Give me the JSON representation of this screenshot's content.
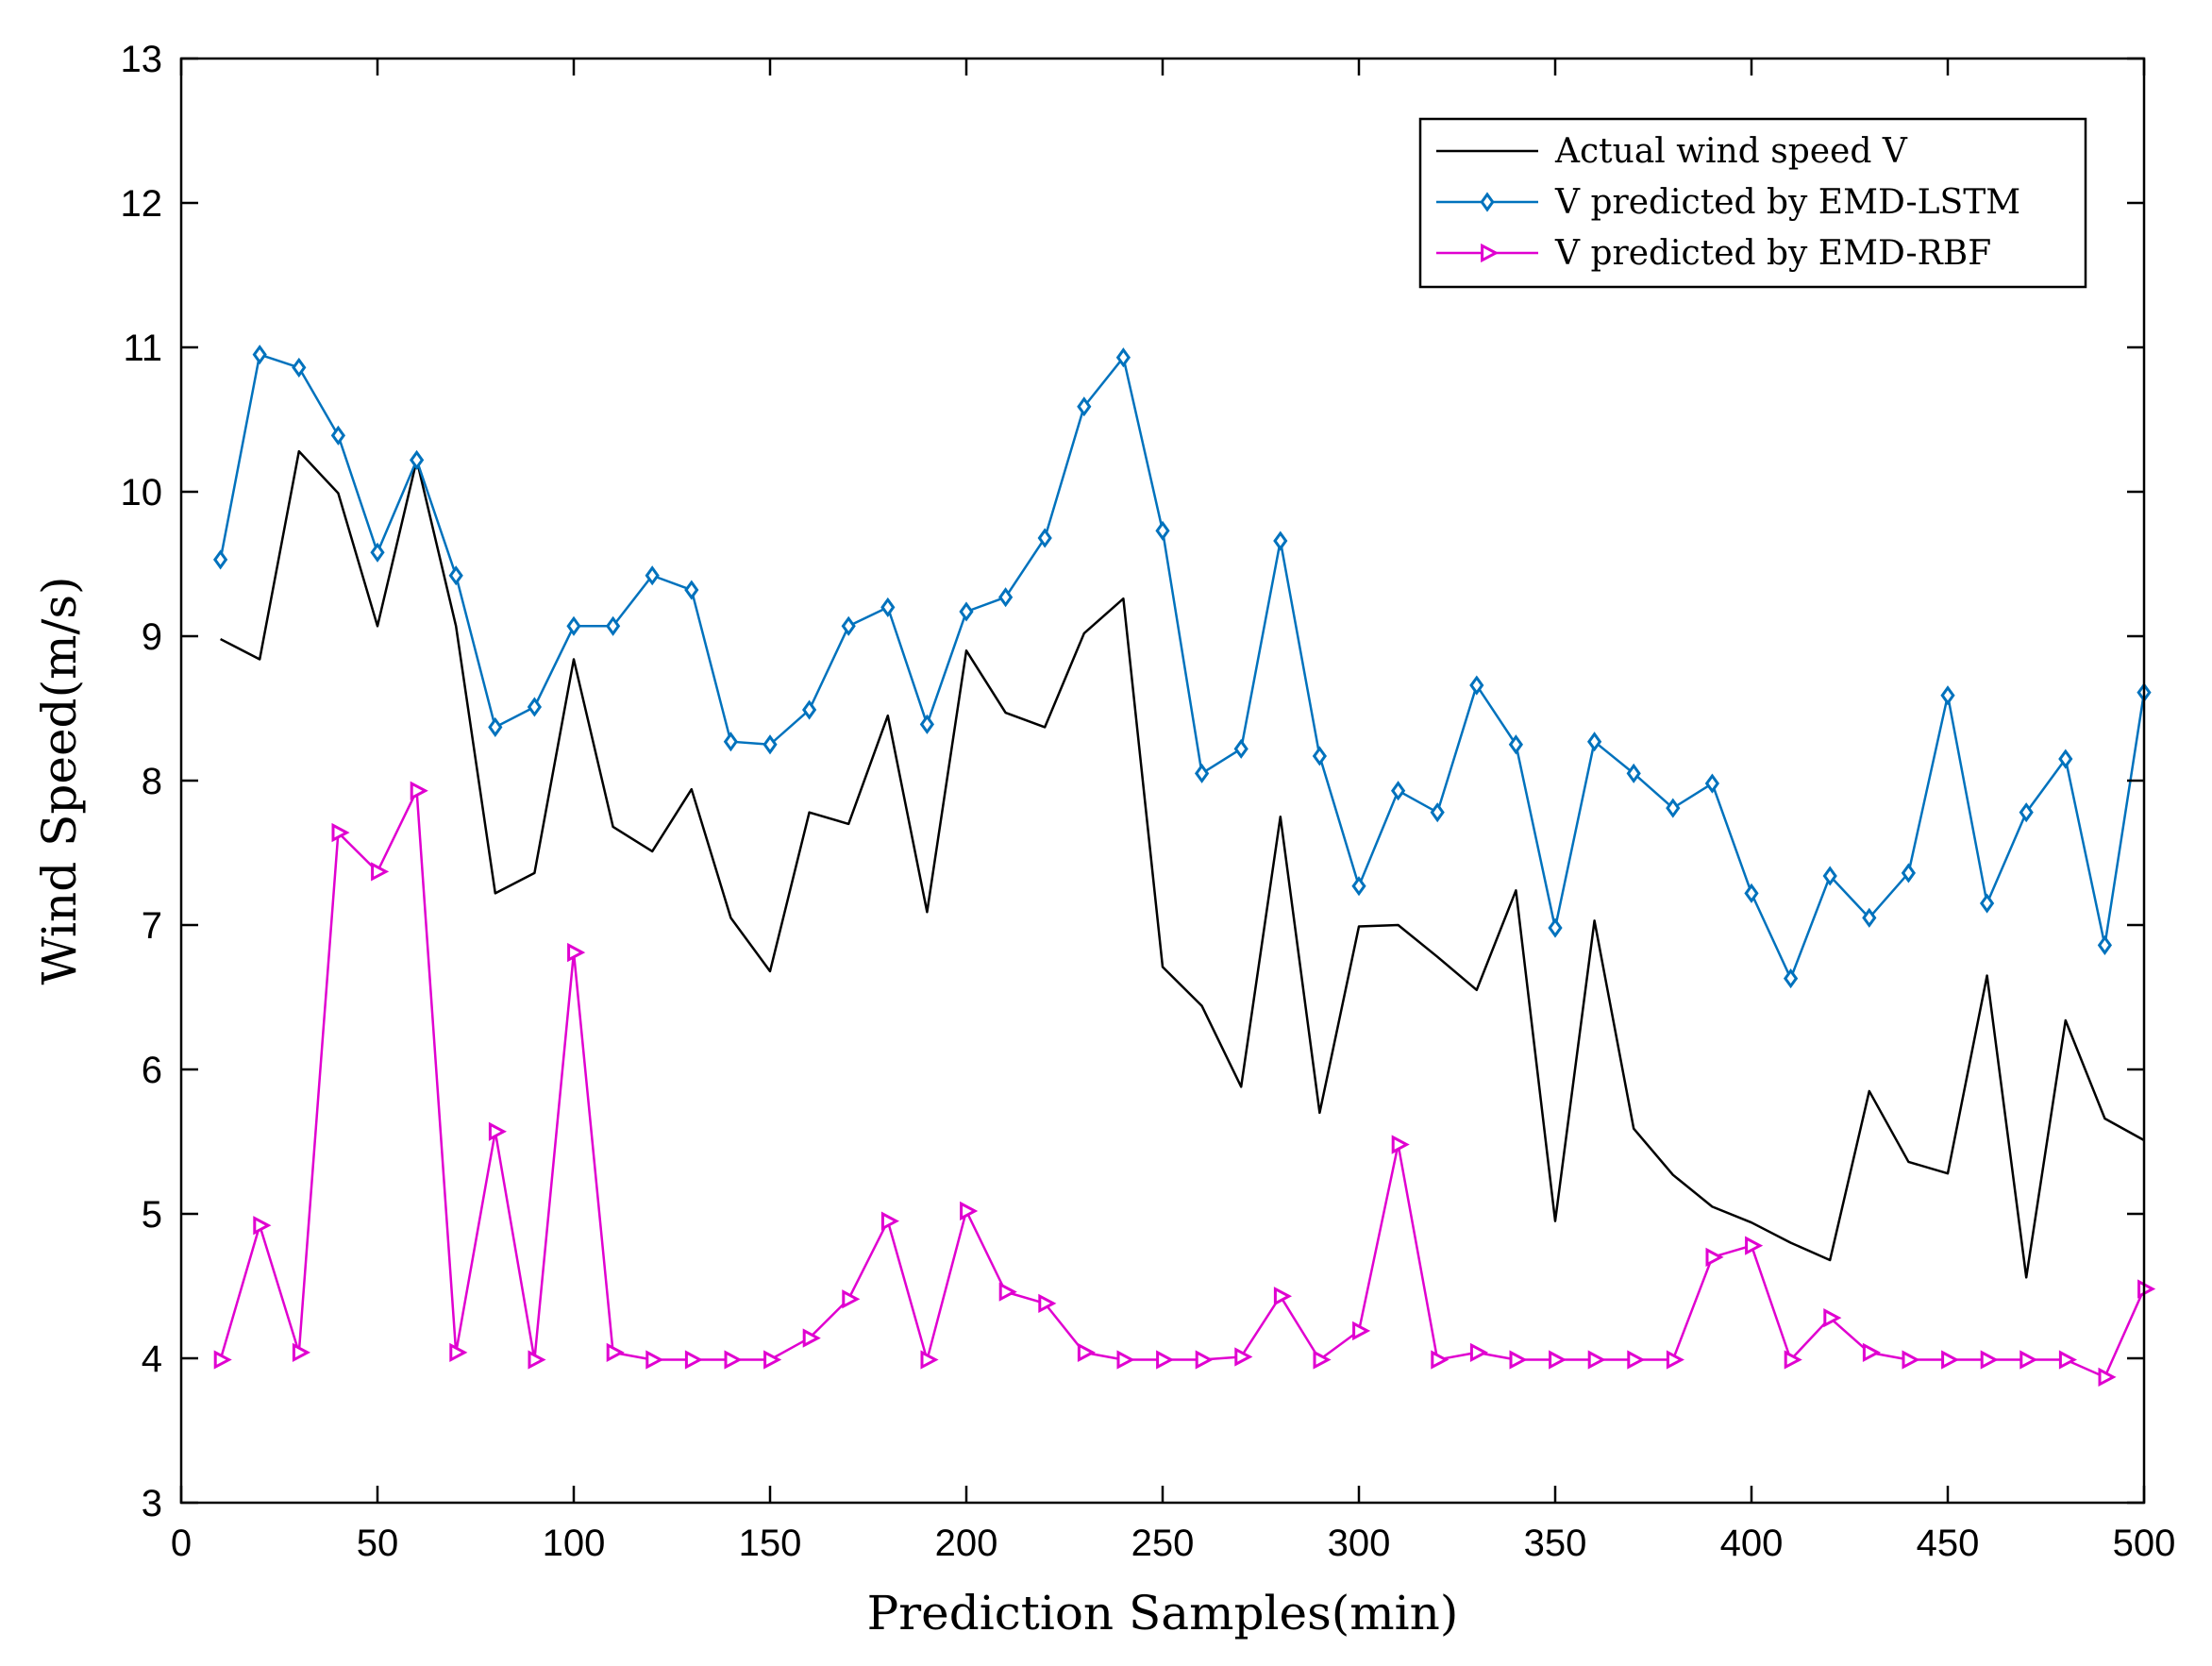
{
  "chart_data": {
    "type": "line",
    "title": "",
    "xlabel": "Prediction Samples(min)",
    "ylabel": "Wind Speed(m/s)",
    "xlim": [
      0,
      500
    ],
    "ylim": [
      3,
      13
    ],
    "xticks": [
      0,
      50,
      100,
      150,
      200,
      250,
      300,
      350,
      400,
      450,
      500
    ],
    "yticks": [
      3,
      4,
      5,
      6,
      7,
      8,
      9,
      10,
      11,
      12,
      13
    ],
    "grid": false,
    "legend_position": "top-right",
    "x": [
      10,
      20,
      30,
      40,
      50,
      60,
      70,
      80,
      90,
      100,
      110,
      120,
      130,
      140,
      150,
      160,
      170,
      180,
      190,
      200,
      210,
      220,
      230,
      240,
      250,
      260,
      270,
      280,
      290,
      300,
      310,
      320,
      330,
      340,
      350,
      360,
      370,
      380,
      390,
      400,
      410,
      420,
      430,
      440,
      450,
      460,
      470,
      480,
      490,
      500
    ],
    "series": [
      {
        "name": "Actual wind speed V",
        "color": "#000000",
        "marker": "none",
        "values": [
          8.98,
          8.84,
          10.28,
          9.99,
          9.07,
          10.22,
          9.07,
          7.22,
          7.36,
          8.84,
          7.68,
          7.51,
          7.94,
          7.05,
          6.68,
          7.78,
          7.7,
          8.45,
          7.09,
          8.9,
          8.47,
          8.37,
          9.02,
          9.26,
          6.71,
          6.44,
          5.88,
          7.75,
          5.7,
          6.99,
          7.0,
          6.78,
          6.55,
          7.24,
          4.95,
          7.03,
          5.59,
          5.27,
          5.05,
          4.94,
          4.8,
          4.68,
          5.85,
          5.36,
          5.28,
          6.65,
          4.56,
          6.34,
          5.66,
          5.51
        ]
      },
      {
        "name": "V predicted by EMD-LSTM",
        "color": "#0072BD",
        "marker": "diamond",
        "values": [
          9.53,
          10.95,
          10.86,
          10.39,
          9.58,
          10.22,
          9.42,
          8.37,
          8.51,
          9.07,
          9.07,
          9.42,
          9.32,
          8.27,
          8.25,
          8.49,
          9.07,
          9.2,
          8.39,
          9.17,
          9.27,
          9.68,
          10.59,
          10.93,
          9.73,
          8.05,
          8.22,
          9.66,
          8.17,
          7.27,
          7.93,
          7.78,
          8.66,
          8.25,
          6.98,
          8.27,
          8.05,
          7.81,
          7.98,
          7.22,
          6.63,
          7.34,
          7.05,
          7.36,
          8.59,
          7.15,
          7.78,
          8.15,
          6.86,
          8.61
        ]
      },
      {
        "name": "V predicted by EMD-RBF",
        "color": "#E000D0",
        "marker": "triangle-right",
        "values": [
          3.99,
          4.92,
          4.04,
          7.64,
          7.37,
          7.93,
          4.04,
          5.57,
          3.99,
          6.81,
          4.04,
          3.99,
          3.99,
          3.99,
          3.99,
          4.14,
          4.41,
          4.95,
          3.99,
          5.02,
          4.46,
          4.38,
          4.04,
          3.99,
          3.99,
          3.99,
          4.01,
          4.43,
          3.99,
          4.19,
          5.48,
          3.99,
          4.04,
          3.99,
          3.99,
          3.99,
          3.99,
          3.99,
          4.7,
          4.78,
          3.99,
          4.28,
          4.04,
          3.99,
          3.99,
          3.99,
          3.99,
          3.99,
          3.87,
          4.48
        ]
      }
    ]
  }
}
